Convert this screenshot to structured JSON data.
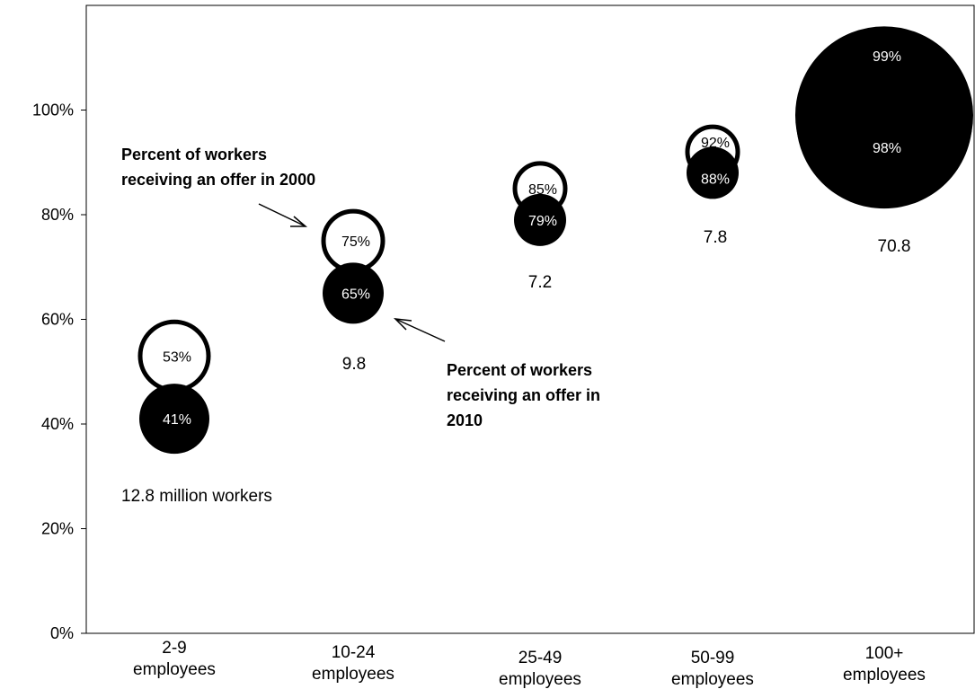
{
  "chart_data": {
    "type": "bubble",
    "categories": [
      [
        "2-9",
        "employees"
      ],
      [
        "10-24",
        "employees"
      ],
      [
        "25-49",
        "employees"
      ],
      [
        "50-99",
        "employees"
      ],
      [
        "100+",
        "employees"
      ]
    ],
    "yticks": [
      "0%",
      "20%",
      "40%",
      "60%",
      "80%",
      "100%"
    ],
    "ylim": [
      0,
      120
    ],
    "grid": false,
    "series": [
      {
        "name": "Percent of workers receiving an offer in 2000",
        "style": "outline",
        "values": [
          53,
          75,
          85,
          92,
          99
        ],
        "labels": [
          "53%",
          "75%",
          "85%",
          "92%",
          "99%"
        ]
      },
      {
        "name": "Percent of workers receiving an offer in 2010",
        "style": "filled",
        "values": [
          41,
          65,
          79,
          88,
          98
        ],
        "labels": [
          "41%",
          "65%",
          "79%",
          "88%",
          "98%"
        ]
      }
    ],
    "workers_millions": [
      12.8,
      9.8,
      7.2,
      7.8,
      70.8
    ],
    "worker_labels": [
      "12.8   million workers",
      "9.8",
      "7.2",
      "7.8",
      "70.8"
    ],
    "annotations": [
      {
        "lines": [
          "Percent of workers",
          "receiving an offer in 2000"
        ]
      },
      {
        "lines": [
          "Percent of workers",
          "receiving an offer in",
          "2010"
        ]
      }
    ],
    "colors": {
      "filled": "#000000",
      "outline_stroke": "#000000",
      "outline_fill": "#ffffff"
    }
  }
}
